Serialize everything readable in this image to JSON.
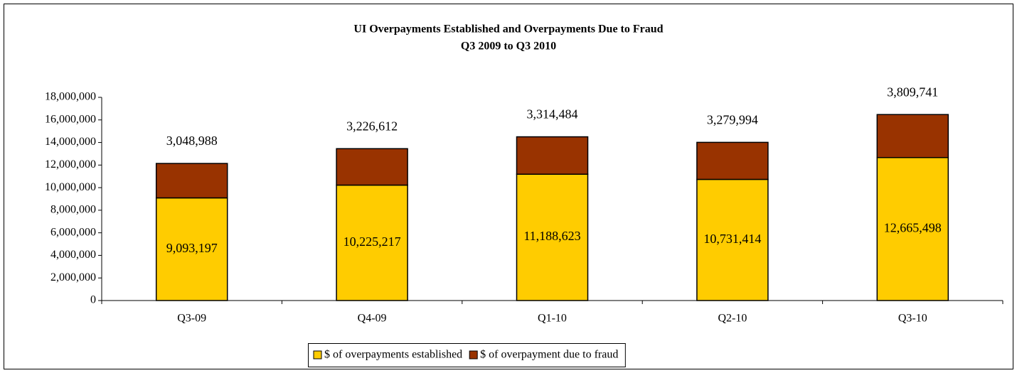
{
  "chart_data": {
    "type": "stacked-bar",
    "title": "UI Overpayments Established and Overpayments Due to Fraud",
    "subtitle": "Q3 2009 to Q3 2010",
    "categories": [
      "Q3-09",
      "Q4-09",
      "Q1-10",
      "Q2-10",
      "Q3-10"
    ],
    "series": [
      {
        "name": "$ of overpayments established",
        "color": "#ffcc00",
        "values": [
          9093197,
          10225217,
          11188623,
          10731414,
          12665498
        ],
        "value_labels": [
          "9,093,197",
          "10,225,217",
          "11,188,623",
          "10,731,414",
          "12,665,498"
        ]
      },
      {
        "name": "$ of overpayment due to fraud",
        "color": "#993300",
        "values": [
          3048988,
          3226612,
          3314484,
          3279994,
          3809741
        ],
        "value_labels": [
          "3,048,988",
          "3,226,612",
          "3,314,484",
          "3,279,994",
          "3,809,741"
        ]
      }
    ],
    "ylim": [
      0,
      18000000
    ],
    "yticks": [
      0,
      {
        "value": 2000000,
        "label": "2,000,000"
      },
      {
        "value": 4000000,
        "label": "4,000,000"
      },
      {
        "value": 6000000,
        "label": "6,000,000"
      },
      {
        "value": 8000000,
        "label": "8,000,000"
      },
      {
        "value": 10000000,
        "label": "10,000,000"
      },
      {
        "value": 12000000,
        "label": "12,000,000"
      },
      {
        "value": 14000000,
        "label": "14,000,000"
      },
      {
        "value": 16000000,
        "label": "16,000,000"
      },
      {
        "value": 18000000,
        "label": "18,000,000"
      }
    ],
    "legend": "bottom"
  }
}
